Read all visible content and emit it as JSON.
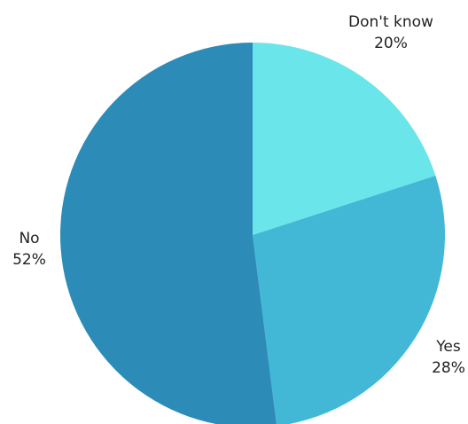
{
  "chart_data": {
    "type": "pie",
    "title": "",
    "slices": [
      {
        "label": "Don't know",
        "value": 20,
        "value_text": "20%",
        "color": "#6ae6ea"
      },
      {
        "label": "Yes",
        "value": 28,
        "value_text": "28%",
        "color": "#42b8d6"
      },
      {
        "label": "No",
        "value": 52,
        "value_text": "52%",
        "color": "#2d8bb8"
      }
    ],
    "start_angle_deg": 0,
    "direction": "clockwise",
    "legend": "none"
  }
}
